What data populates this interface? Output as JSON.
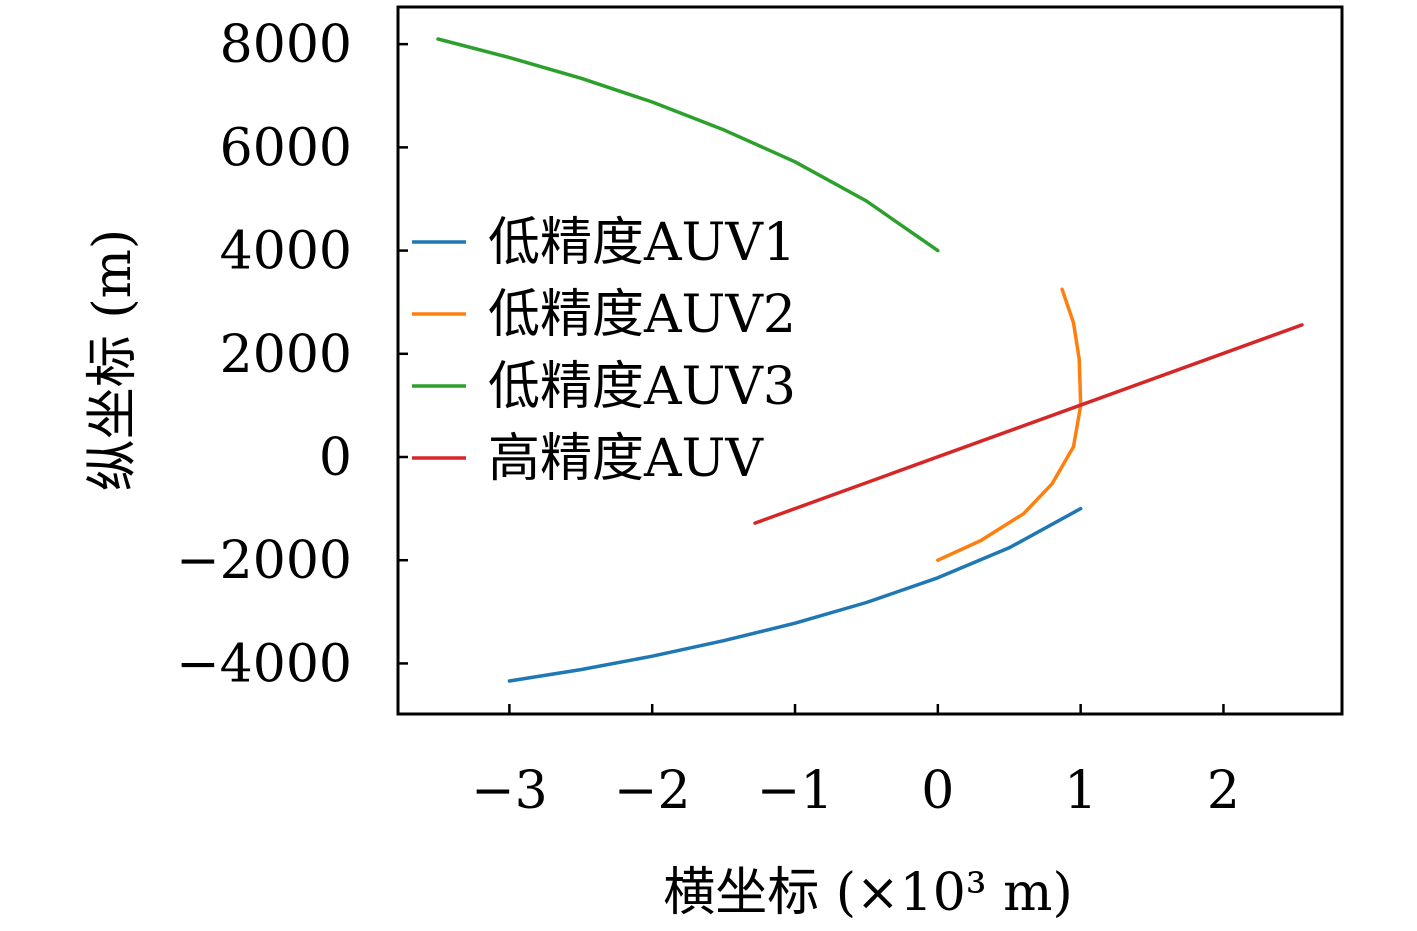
{
  "chart_data": {
    "type": "line",
    "xlabel": "横坐标 (×10³ m)",
    "ylabel": "纵坐标 (m)",
    "xlim": [
      -3.78,
      2.83
    ],
    "ylim": [
      -4980,
      8720
    ],
    "xticks": [
      -3,
      -2,
      -1,
      0,
      1,
      2
    ],
    "xtick_labels": [
      "−3",
      "−2",
      "−1",
      "0",
      "1",
      "2"
    ],
    "yticks": [
      -4000,
      -2000,
      0,
      2000,
      4000,
      6000,
      8000
    ],
    "ytick_labels": [
      "−4000",
      "−2000",
      "0",
      "2000",
      "4000",
      "6000",
      "8000"
    ],
    "grid": false,
    "legend_position": "center-left",
    "series": [
      {
        "name": "低精度AUV1",
        "color": "#1f77b4",
        "x": [
          -3.0,
          -2.5,
          -2.0,
          -1.5,
          -1.0,
          -0.5,
          0.0,
          0.5,
          1.0
        ],
        "y": [
          -4340,
          -4120,
          -3860,
          -3560,
          -3220,
          -2820,
          -2340,
          -1760,
          -1000
        ]
      },
      {
        "name": "低精度AUV2",
        "color": "#ff7f0e",
        "x": [
          0.0,
          0.3,
          0.6,
          0.8,
          0.95,
          1.0,
          0.99,
          0.95,
          0.87
        ],
        "y": [
          -2000,
          -1620,
          -1100,
          -520,
          200,
          1000,
          1900,
          2600,
          3250
        ]
      },
      {
        "name": "低精度AUV3",
        "color": "#2ca02c",
        "x": [
          -3.5,
          -3.0,
          -2.5,
          -2.0,
          -1.5,
          -1.0,
          -0.5,
          0.0
        ],
        "y": [
          8100,
          7740,
          7340,
          6880,
          6340,
          5720,
          4960,
          4000
        ]
      },
      {
        "name": "高精度AUV",
        "color": "#d62728",
        "x": [
          -1.28,
          2.55
        ],
        "y": [
          -1280,
          2560
        ]
      }
    ]
  }
}
